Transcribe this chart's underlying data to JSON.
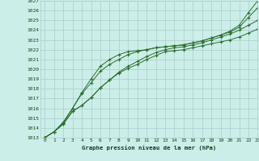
{
  "title": "Graphe pression niveau de la mer (hPa)",
  "bg_color": "#cceee8",
  "grid_color": "#aacccc",
  "line_color": "#2d6e2d",
  "marker_color": "#2d6e2d",
  "text_color": "#1a3a1a",
  "xlim": [
    -0.5,
    23
  ],
  "ylim": [
    1013,
    1027
  ],
  "xticks": [
    0,
    1,
    2,
    3,
    4,
    5,
    6,
    7,
    8,
    9,
    10,
    11,
    12,
    13,
    14,
    15,
    16,
    17,
    18,
    19,
    20,
    21,
    22,
    23
  ],
  "yticks": [
    1013,
    1014,
    1015,
    1016,
    1017,
    1018,
    1019,
    1020,
    1021,
    1022,
    1023,
    1024,
    1025,
    1026,
    1027
  ],
  "series": [
    [
      1013.0,
      1013.6,
      1014.4,
      1015.7,
      1016.3,
      1017.1,
      1018.1,
      1018.9,
      1019.6,
      1020.1,
      1020.5,
      1021.0,
      1021.4,
      1021.8,
      1021.9,
      1022.0,
      1022.2,
      1022.4,
      1022.6,
      1022.8,
      1023.0,
      1023.3,
      1023.7,
      1024.1
    ],
    [
      1013.0,
      1013.6,
      1014.4,
      1015.7,
      1016.3,
      1017.1,
      1018.1,
      1018.9,
      1019.7,
      1020.3,
      1020.8,
      1021.3,
      1021.7,
      1022.0,
      1022.2,
      1022.3,
      1022.5,
      1022.7,
      1023.0,
      1023.3,
      1023.6,
      1024.0,
      1024.5,
      1025.0
    ],
    [
      1013.0,
      1013.6,
      1014.5,
      1016.0,
      1017.5,
      1018.6,
      1019.8,
      1020.5,
      1021.0,
      1021.5,
      1021.8,
      1022.0,
      1022.2,
      1022.3,
      1022.4,
      1022.5,
      1022.7,
      1022.9,
      1023.2,
      1023.5,
      1023.8,
      1024.3,
      1025.3,
      1026.3
    ],
    [
      1013.0,
      1013.6,
      1014.6,
      1016.0,
      1017.6,
      1019.0,
      1020.3,
      1021.0,
      1021.5,
      1021.8,
      1021.9,
      1022.0,
      1022.2,
      1022.3,
      1022.4,
      1022.5,
      1022.7,
      1022.9,
      1023.2,
      1023.5,
      1023.9,
      1024.5,
      1025.8,
      1027.0
    ]
  ]
}
